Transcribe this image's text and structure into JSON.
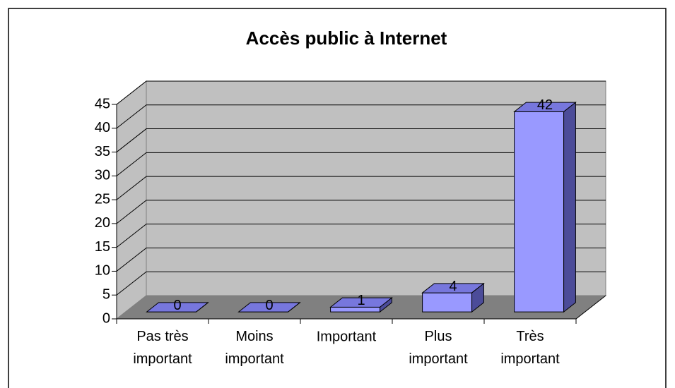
{
  "chart_data": {
    "type": "bar3d",
    "title": "Accès public à Internet",
    "categories": [
      "Pas très important",
      "Moins important",
      "Important",
      "Plus important",
      "Très important"
    ],
    "values": [
      0,
      0,
      1,
      4,
      42
    ],
    "color": "#9999ff",
    "ylim": [
      0,
      45
    ],
    "yticks": [
      0,
      5,
      10,
      15,
      20,
      25,
      30,
      35,
      40,
      45
    ],
    "grid": true
  }
}
